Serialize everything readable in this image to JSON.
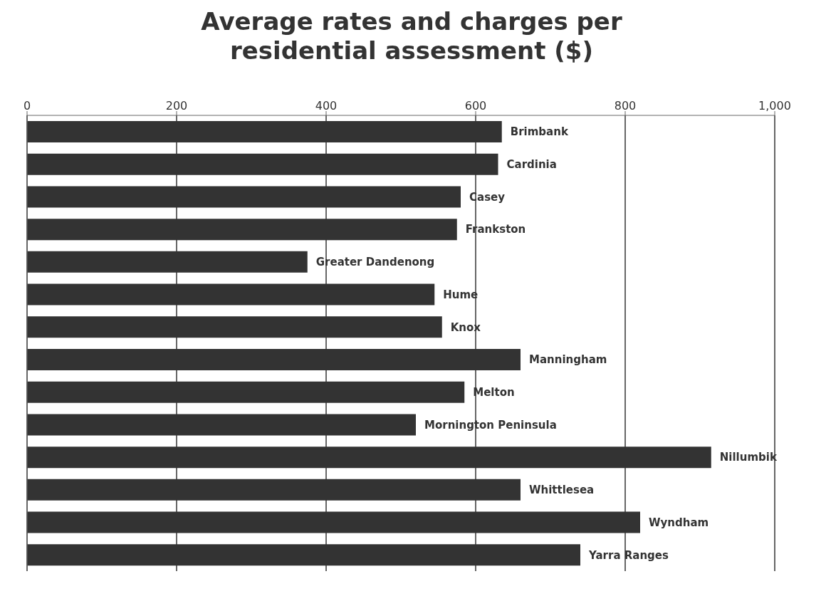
{
  "chart_data": {
    "type": "bar",
    "orientation": "horizontal",
    "title": "Average rates and charges per residential assessment ($)",
    "categories": [
      "Brimbank",
      "Cardinia",
      "Casey",
      "Frankston",
      "Greater Dandenong",
      "Hume",
      "Knox",
      "Manningham",
      "Melton",
      "Mornington Peninsula",
      "Nillumbik",
      "Whittlesea",
      "Wyndham",
      "Yarra Ranges"
    ],
    "values": [
      635,
      630,
      580,
      575,
      375,
      545,
      555,
      660,
      585,
      520,
      915,
      660,
      820,
      740
    ],
    "color": "#333333",
    "xlim": [
      0,
      1000
    ],
    "xticks": [
      0,
      200,
      400,
      600,
      800,
      {
        "value": 1000,
        "label": "1,000"
      }
    ],
    "grid": "x"
  }
}
